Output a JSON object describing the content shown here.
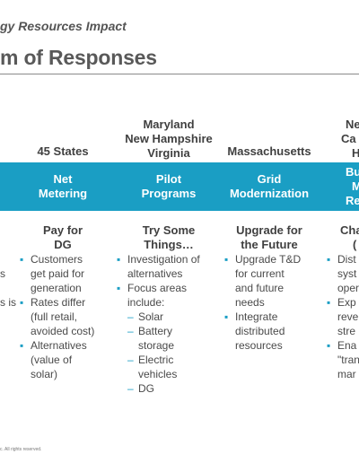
{
  "header": {
    "subtitle": "gy Resources Impact",
    "title": "m of Responses"
  },
  "columns": [
    {
      "states": [
        "45 States"
      ],
      "band": [
        "Net",
        "Metering"
      ],
      "heading": [
        "Pay for",
        "DG"
      ],
      "bullets": [
        {
          "type": "bullet",
          "lines": [
            "Customers",
            "get paid for",
            "generation"
          ]
        },
        {
          "type": "bullet",
          "lines": [
            "Rates differ",
            "(full retail,",
            "avoided cost)"
          ]
        },
        {
          "type": "bullet",
          "lines": [
            "Alternatives",
            "(value of",
            "solar)"
          ]
        }
      ]
    },
    {
      "states": [
        "Maryland",
        "New Hampshire",
        "Virginia"
      ],
      "band": [
        "Pilot",
        "Programs"
      ],
      "heading": [
        "Try Some",
        "Things…"
      ],
      "bullets": [
        {
          "type": "bullet",
          "lines": [
            "Investigation of",
            "alternatives"
          ]
        },
        {
          "type": "bullet",
          "lines": [
            "Focus areas",
            "include:"
          ]
        },
        {
          "type": "sub",
          "lines": [
            "Solar"
          ]
        },
        {
          "type": "sub",
          "lines": [
            "Battery",
            "storage"
          ]
        },
        {
          "type": "sub",
          "lines": [
            "Electric",
            "vehicles"
          ]
        },
        {
          "type": "sub",
          "lines": [
            "DG"
          ]
        }
      ]
    },
    {
      "states": [
        "Massachusetts"
      ],
      "band": [
        "Grid",
        "Modernization"
      ],
      "heading": [
        "Upgrade for",
        "the Future"
      ],
      "bullets": [
        {
          "type": "bullet",
          "lines": [
            "Upgrade T&D",
            "for current",
            "and future",
            "needs"
          ]
        },
        {
          "type": "bullet",
          "lines": [
            "Integrate",
            "distributed",
            "resources"
          ]
        }
      ]
    },
    {
      "states": [
        "Ne",
        "Ca",
        "H"
      ],
      "band": [
        "Bu",
        "M",
        "Re"
      ],
      "heading": [
        "Cha",
        "("
      ],
      "bullets": [
        {
          "type": "bullet",
          "lines": [
            "Dist",
            "syst",
            "oper"
          ]
        },
        {
          "type": "bullet",
          "lines": [
            "Exp",
            "reve",
            "stre"
          ]
        },
        {
          "type": "bullet",
          "lines": [
            "Ena",
            "\"tran",
            "mar"
          ]
        }
      ]
    }
  ],
  "left_partial": {
    "heading_tail": "",
    "text_tails": [
      "s",
      "s is"
    ]
  },
  "footer": {
    "text": "c. All rights reserved."
  },
  "colors": {
    "band": "#1a9ec4",
    "bullet": "#1a9ec4",
    "title": "#595959"
  }
}
